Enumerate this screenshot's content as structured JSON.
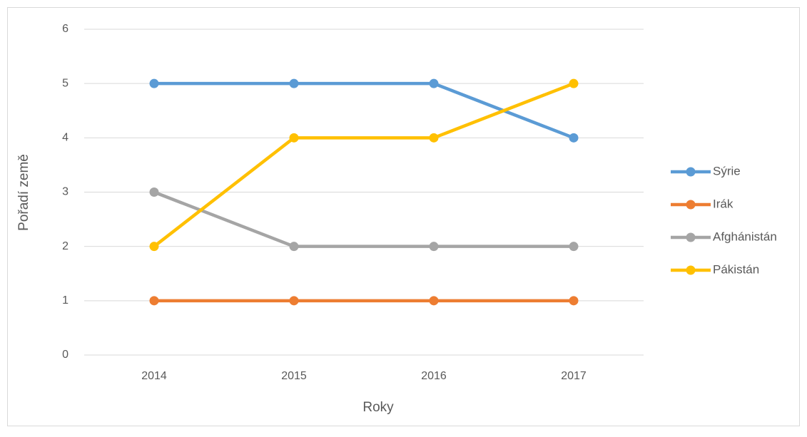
{
  "chart_data": {
    "type": "line",
    "x_label": "Roky",
    "y_label": "Pořadí země",
    "categories": [
      "2014",
      "2015",
      "2016",
      "2017"
    ],
    "series": [
      {
        "name": "Sýrie",
        "color": "#5b9bd5",
        "values": [
          5,
          5,
          5,
          4
        ]
      },
      {
        "name": "Irák",
        "color": "#ed7d31",
        "values": [
          1,
          1,
          1,
          1
        ]
      },
      {
        "name": "Afghánistán",
        "color": "#a5a5a5",
        "values": [
          3,
          2,
          2,
          2
        ]
      },
      {
        "name": "Pákistán",
        "color": "#ffc000",
        "values": [
          2,
          4,
          4,
          5
        ]
      }
    ],
    "ylim": [
      0,
      6
    ],
    "yticks": [
      0,
      1,
      2,
      3,
      4,
      5,
      6
    ],
    "grid": true,
    "legend": "right"
  }
}
